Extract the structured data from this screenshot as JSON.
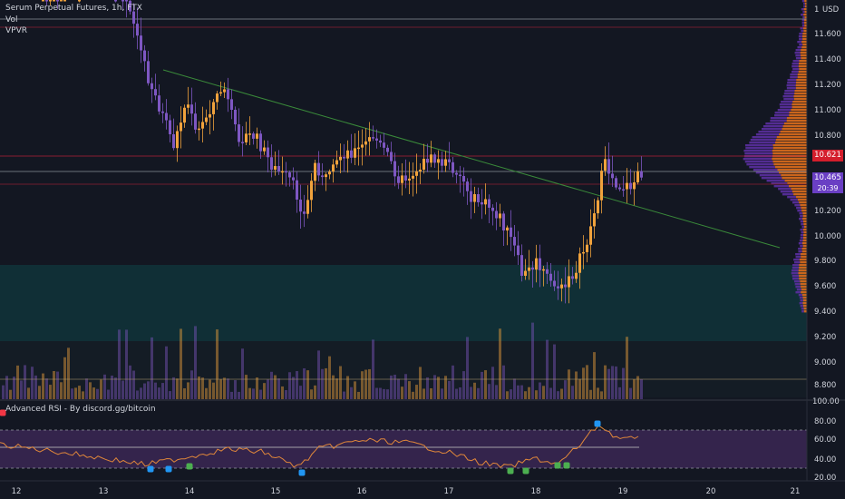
{
  "chart_header": {
    "title": "Serum Perpetual Futures, 1h, FTX",
    "indicator_vol": "Vol",
    "indicator_vpvr": "VPVR",
    "rsi_title": "Advanced RSI - By discord.gg/bitcoin"
  },
  "price_axis": {
    "currency": "USD",
    "top_value": "1",
    "labels": [
      "11.600",
      "11.400",
      "11.200",
      "11.000",
      "10.800",
      "10.200",
      "10.000",
      "9.800",
      "9.600",
      "9.400",
      "9.200",
      "9.000",
      "8.800"
    ]
  },
  "rsi_axis": {
    "labels": [
      "100.00",
      "80.00",
      "60.00",
      "40.00",
      "20.00"
    ]
  },
  "time_axis": {
    "labels": [
      "12",
      "13",
      "14",
      "15",
      "16",
      "17",
      "18",
      "19",
      "20",
      "21"
    ]
  },
  "price_badges": {
    "red_level": "10.621",
    "last_price": "10.465",
    "countdown": "20:39"
  },
  "colors": {
    "background": "#131722",
    "candle_up": "#f0a23c",
    "candle_down": "#7e57c2",
    "trendline": "#3a8a3a",
    "red_level": "#ff1744",
    "last_price": "#6a3fc4",
    "demand_zone": "#0f3b3f",
    "rsi_line": "#e0873a",
    "rsi_band": "#3b2754"
  }
}
